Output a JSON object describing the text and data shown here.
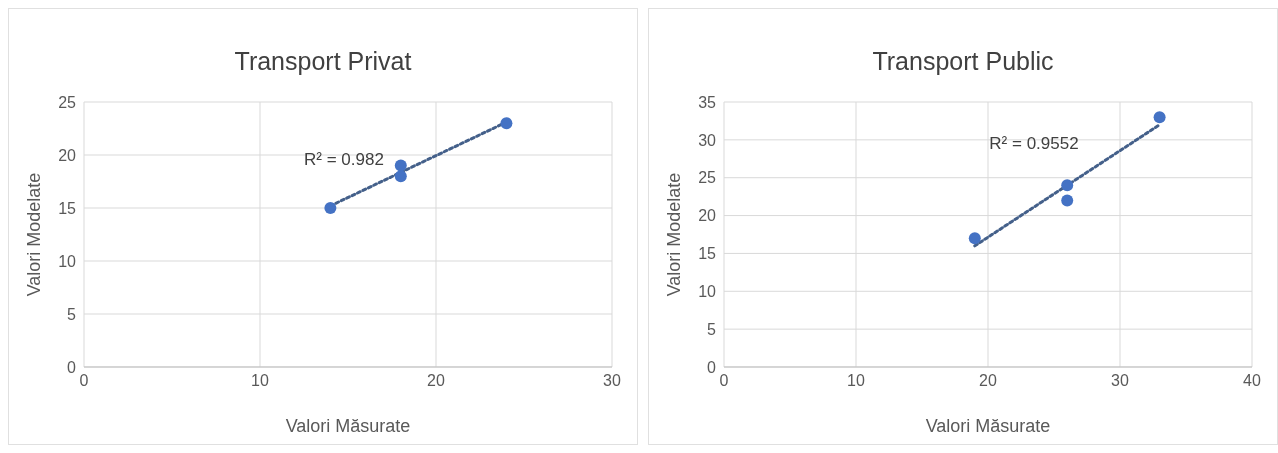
{
  "chart_data": [
    {
      "type": "scatter",
      "title": "Transport Privat",
      "xlabel": "Valori Măsurate",
      "ylabel": "Valori Modelate",
      "xlim": [
        0,
        30
      ],
      "xticks": [
        0,
        10,
        20,
        30
      ],
      "ylim": [
        0,
        25
      ],
      "yticks": [
        0,
        5,
        10,
        15,
        20,
        25
      ],
      "grid": true,
      "legend": false,
      "marker": "circle",
      "series": [
        {
          "color": "#4472c4",
          "x": [
            14,
            18,
            18,
            24
          ],
          "values": [
            15,
            19,
            18,
            23
          ]
        },
        {
          "type": "line",
          "color": "#44608a",
          "line_style": "dotted",
          "marker": "none",
          "x": [
            14,
            24
          ],
          "values": [
            15.2,
            23.1
          ]
        }
      ],
      "annotations": [
        "R² = 0.982"
      ]
    },
    {
      "type": "scatter",
      "title": "Transport Public",
      "xlabel": "Valori Măsurate",
      "ylabel": "Valori Modelate",
      "xlim": [
        0,
        40
      ],
      "xticks": [
        0,
        10,
        20,
        30,
        40
      ],
      "ylim": [
        0,
        35
      ],
      "yticks": [
        0,
        5,
        10,
        15,
        20,
        25,
        30,
        35
      ],
      "grid": true,
      "legend": false,
      "marker": "circle",
      "series": [
        {
          "color": "#4472c4",
          "x": [
            19,
            26,
            26,
            33
          ],
          "values": [
            17,
            24,
            22,
            33
          ]
        },
        {
          "type": "line",
          "color": "#44608a",
          "line_style": "dotted",
          "marker": "none",
          "x": [
            19,
            33
          ],
          "values": [
            16,
            32
          ]
        }
      ],
      "annotations": [
        "R² = 0.9552"
      ]
    }
  ]
}
